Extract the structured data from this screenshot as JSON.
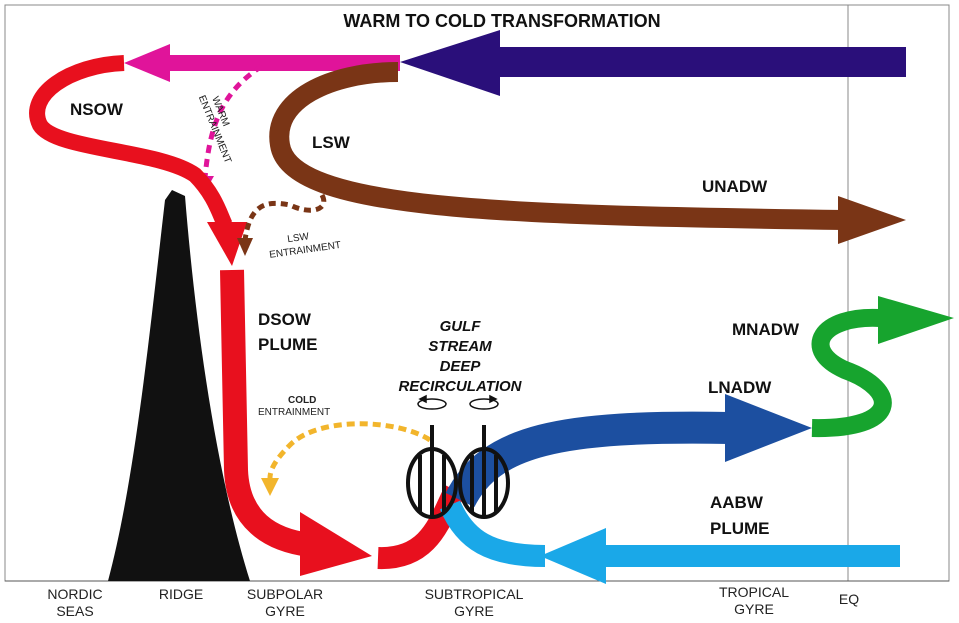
{
  "title": "WARM TO COLD TRANSFORMATION",
  "labels": {
    "nsow": "NSOW",
    "lsw": "LSW",
    "unadw": "UNADW",
    "dsow_1": "DSOW",
    "dsow_2": "PLUME",
    "mnadw": "MNADW",
    "lnadw": "LNADW",
    "aabw_1": "AABW",
    "aabw_2": "PLUME",
    "gulf_1": "GULF",
    "gulf_2": "STREAM",
    "gulf_3": "DEEP",
    "gulf_4": "RECIRCULATION",
    "warm_1": "WARM",
    "warm_2": "ENTRAINMENT",
    "lsw_ent_1": "LSW",
    "lsw_ent_2": "ENTRAINMENT",
    "cold_1": "COLD",
    "cold_2": "ENTRAINMENT"
  },
  "axis": {
    "nordic_1": "NORDIC",
    "nordic_2": "SEAS",
    "ridge": "RIDGE",
    "subpolar_1": "SUBPOLAR",
    "subpolar_2": "GYRE",
    "subtropical_1": "SUBTROPICAL",
    "subtropical_2": "GYRE",
    "tropical_1": "TROPICAL",
    "tropical_2": "GYRE",
    "eq": "EQ"
  },
  "colors": {
    "warm_inflow": "#2a0f7a",
    "magenta": "#e0149a",
    "red": "#e8101e",
    "brown": "#7a3516",
    "dark_blue": "#1c4fa0",
    "light_blue": "#1aa8e8",
    "green": "#17a42e",
    "yellow": "#f2b52c",
    "ridge": "#111111"
  }
}
